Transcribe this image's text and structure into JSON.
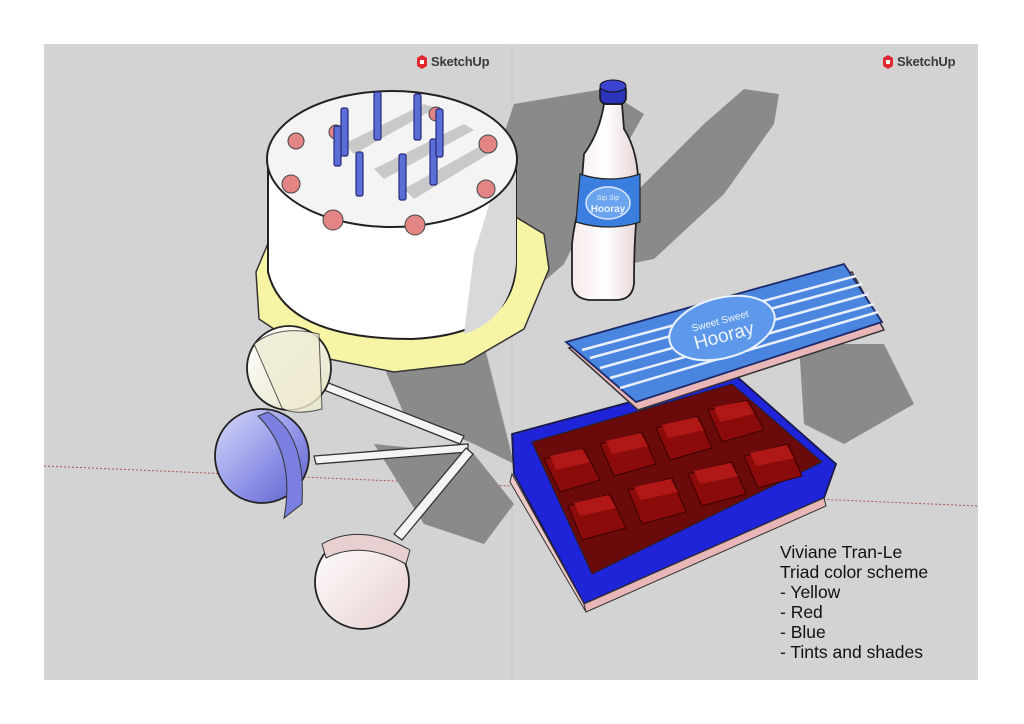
{
  "watermarks": {
    "left": {
      "text": "SketchUp",
      "icon": "sketchup-logo-icon"
    },
    "right": {
      "text": "SketchUp",
      "icon": "sketchup-logo-icon"
    }
  },
  "caption": {
    "author": "Viviane Tran-Le",
    "title": "Triad color scheme",
    "items": [
      "- Yellow",
      "- Red",
      "- Blue",
      "- Tints and shades"
    ]
  },
  "product_labels": {
    "bottle_line1": "Sip Sip",
    "bottle_line2": "Hooray",
    "tin_line1": "Sweet Sweet",
    "tin_line2": "Hooray"
  },
  "colors": {
    "background": "#d3d3d3",
    "yellow": "#f8f4a6",
    "red": "#8b0b0b",
    "blue": "#2222cc",
    "lid_blue": "#4a86e0",
    "candle": "#5a6ed8",
    "frosting_dot": "#e48585"
  }
}
